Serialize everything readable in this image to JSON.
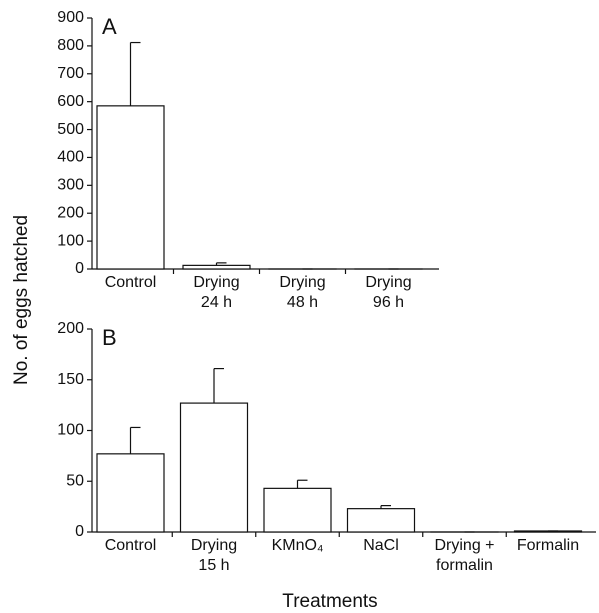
{
  "chart_data": [
    {
      "type": "bar",
      "panel_label": "A",
      "categories": [
        [
          "Control"
        ],
        [
          "Drying",
          "24 h"
        ],
        [
          "Drying",
          "48 h"
        ],
        [
          "Drying",
          "96 h"
        ]
      ],
      "values": [
        585,
        13,
        0,
        0
      ],
      "errors": [
        227,
        9,
        0,
        0
      ],
      "ylim": [
        0,
        900
      ],
      "yticks": [
        0,
        100,
        200,
        300,
        400,
        500,
        600,
        700,
        800,
        900
      ],
      "ylabel": "No. of eggs hatched",
      "color": "#ffffff"
    },
    {
      "type": "bar",
      "panel_label": "B",
      "categories": [
        [
          "Control"
        ],
        [
          "Drying",
          "15 h"
        ],
        [
          "KMnO₄"
        ],
        [
          "NaCl"
        ],
        [
          "Drying +",
          "formalin"
        ],
        [
          "Formalin"
        ]
      ],
      "values": [
        77,
        127,
        43,
        23,
        0,
        1
      ],
      "errors": [
        26,
        34,
        8,
        3,
        0,
        0
      ],
      "ylim": [
        0,
        200
      ],
      "yticks": [
        0,
        50,
        100,
        150,
        200
      ],
      "xlabel": "Treatments",
      "color": "#ffffff"
    }
  ]
}
